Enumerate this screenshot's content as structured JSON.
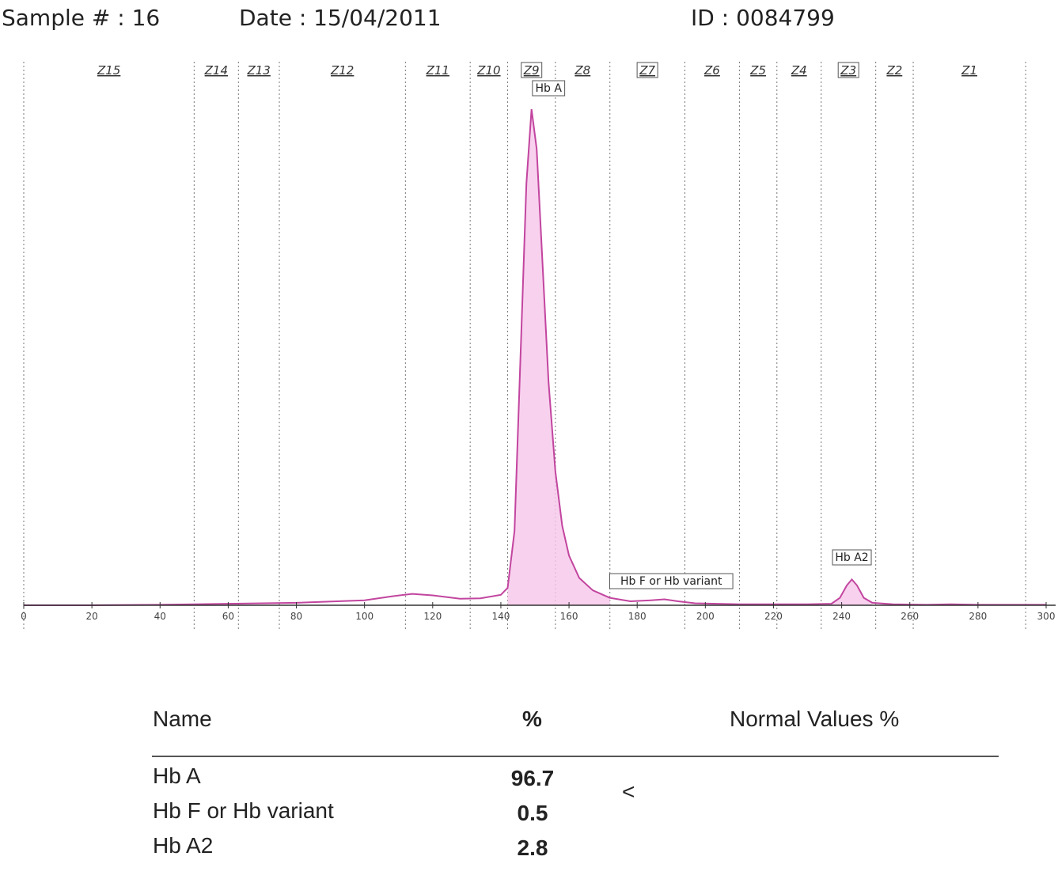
{
  "header": {
    "sample_label": "Sample # :",
    "sample_value": "16",
    "date_label": "Date :",
    "date_value": "15/04/2011",
    "id_label": "ID :",
    "id_value": "0084799"
  },
  "chart_data": {
    "type": "line",
    "xlim": [
      0,
      300
    ],
    "x_ticks": [
      0,
      20,
      40,
      60,
      80,
      100,
      120,
      140,
      160,
      180,
      200,
      220,
      240,
      260,
      280,
      300
    ],
    "zones": [
      {
        "name": "Z15",
        "boxed": false,
        "x_range": [
          0,
          50
        ]
      },
      {
        "name": "Z14",
        "boxed": false,
        "x_range": [
          50,
          63
        ]
      },
      {
        "name": "Z13",
        "boxed": false,
        "x_range": [
          63,
          75
        ]
      },
      {
        "name": "Z12",
        "boxed": false,
        "x_range": [
          75,
          112
        ]
      },
      {
        "name": "Z11",
        "boxed": false,
        "x_range": [
          112,
          131
        ]
      },
      {
        "name": "Z10",
        "boxed": false,
        "x_range": [
          131,
          142
        ]
      },
      {
        "name": "Z9",
        "boxed": true,
        "x_range": [
          142,
          156
        ]
      },
      {
        "name": "Z8",
        "boxed": false,
        "x_range": [
          156,
          172
        ]
      },
      {
        "name": "Z7",
        "boxed": true,
        "x_range": [
          172,
          194
        ]
      },
      {
        "name": "Z6",
        "boxed": false,
        "x_range": [
          194,
          210
        ]
      },
      {
        "name": "Z5",
        "boxed": false,
        "x_range": [
          210,
          221
        ]
      },
      {
        "name": "Z4",
        "boxed": false,
        "x_range": [
          221,
          234
        ]
      },
      {
        "name": "Z3",
        "boxed": true,
        "x_range": [
          234,
          250
        ]
      },
      {
        "name": "Z2",
        "boxed": false,
        "x_range": [
          250,
          261
        ]
      },
      {
        "name": "Z1",
        "boxed": false,
        "x_range": [
          261,
          294
        ]
      }
    ],
    "peak_labels": [
      {
        "text": "Hb A",
        "x": 154
      },
      {
        "text": "Hb F or Hb variant",
        "x": 190
      },
      {
        "text": "Hb A2",
        "x": 243
      }
    ],
    "series": [
      {
        "color": "#c2459f",
        "points": [
          [
            0,
            0
          ],
          [
            20,
            0
          ],
          [
            40,
            0.1
          ],
          [
            60,
            0.3
          ],
          [
            80,
            0.5
          ],
          [
            100,
            1.0
          ],
          [
            108,
            1.8
          ],
          [
            114,
            2.3
          ],
          [
            120,
            2.0
          ],
          [
            128,
            1.3
          ],
          [
            134,
            1.4
          ],
          [
            140,
            2.1
          ],
          [
            142,
            3.5
          ],
          [
            144,
            15
          ],
          [
            146,
            55
          ],
          [
            147.5,
            85
          ],
          [
            149,
            100
          ],
          [
            150.5,
            92
          ],
          [
            152,
            72
          ],
          [
            154,
            45
          ],
          [
            156,
            27
          ],
          [
            158,
            16
          ],
          [
            160,
            10
          ],
          [
            163,
            5.5
          ],
          [
            167,
            3
          ],
          [
            172,
            1.5
          ],
          [
            178,
            0.8
          ],
          [
            184,
            1.0
          ],
          [
            188,
            1.2
          ],
          [
            192,
            0.8
          ],
          [
            197,
            0.4
          ],
          [
            210,
            0.2
          ],
          [
            230,
            0.2
          ],
          [
            237,
            0.3
          ],
          [
            239.5,
            1.5
          ],
          [
            241.5,
            4
          ],
          [
            243,
            5.2
          ],
          [
            244.5,
            4
          ],
          [
            246.5,
            1.5
          ],
          [
            249,
            0.5
          ],
          [
            255,
            0.2
          ],
          [
            265,
            0.1
          ],
          [
            272,
            0.2
          ],
          [
            280,
            0.1
          ],
          [
            300,
            0.1
          ]
        ]
      }
    ]
  },
  "results": {
    "columns": [
      "Name",
      "%",
      "Normal Values %"
    ],
    "rows": [
      {
        "name": "Hb A",
        "percent": "96.7"
      },
      {
        "name": "Hb F or Hb variant",
        "percent": "0.5"
      },
      {
        "name": "Hb A2",
        "percent": "2.8"
      }
    ],
    "normal_symbol": "<"
  }
}
